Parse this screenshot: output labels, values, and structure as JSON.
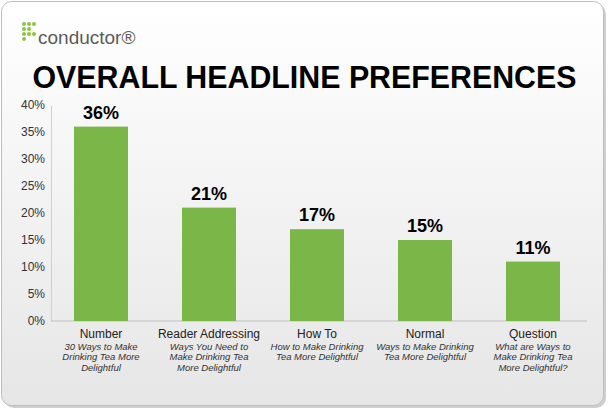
{
  "chart_data": {
    "type": "bar",
    "logo": "conductor®",
    "title": "OVERALL HEADLINE PREFERENCES",
    "categories": [
      "Number",
      "Reader Addressing",
      "How To",
      "Normal",
      "Question"
    ],
    "category_examples": [
      "30 Ways to Make Drinking Tea More Delightful",
      "Ways You Need to Make Drinking Tea More Delightful",
      "How to Make Drinking Tea More Delightful",
      "Ways to Make Drinking Tea More Delightful",
      "What are Ways to Make Drinking Tea More Delightful?"
    ],
    "values": [
      36,
      21,
      17,
      15,
      11
    ],
    "value_labels": [
      "36%",
      "21%",
      "17%",
      "15%",
      "11%"
    ],
    "color": "#7ab648",
    "ylim": [
      0,
      40
    ],
    "yticks": [
      {
        "value": 0,
        "label": "0%"
      },
      {
        "value": 5,
        "label": "5%"
      },
      {
        "value": 10,
        "label": "10%"
      },
      {
        "value": 15,
        "label": "15%"
      },
      {
        "value": 20,
        "label": "20%"
      },
      {
        "value": 25,
        "label": "25%"
      },
      {
        "value": 30,
        "label": "30%"
      },
      {
        "value": 35,
        "label": "35%"
      },
      {
        "value": 40,
        "label": "40%"
      }
    ],
    "grid": false,
    "data_labels": true
  }
}
